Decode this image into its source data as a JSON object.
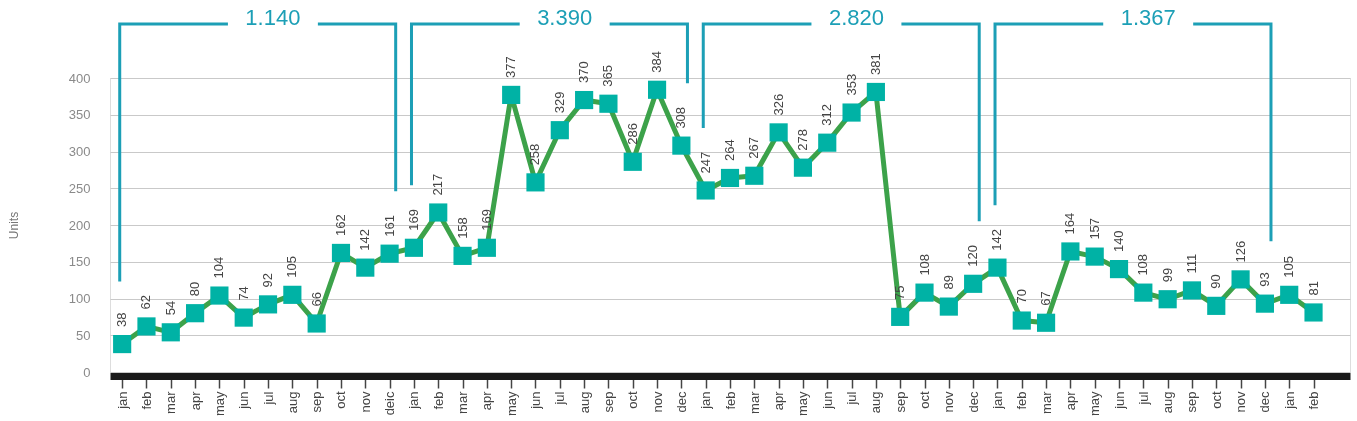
{
  "chart_data": {
    "type": "line",
    "ylabel": "Units",
    "categories": [
      "jan",
      "feb",
      "mar",
      "apr",
      "may",
      "jun",
      "jul",
      "aug",
      "sep",
      "oct",
      "nov",
      "deic",
      "jan",
      "feb",
      "mar",
      "apr",
      "may",
      "jun",
      "jul",
      "aug",
      "sep",
      "oct",
      "nov",
      "dec",
      "jan",
      "feb",
      "mar",
      "apr",
      "may",
      "jun",
      "jul",
      "aug",
      "sep",
      "oct",
      "nov",
      "dec",
      "jan",
      "feb",
      "mar",
      "apr",
      "may",
      "jun",
      "jul",
      "aug",
      "sep",
      "oct",
      "nov",
      "dec",
      "jan",
      "feb"
    ],
    "series": [
      {
        "color": "#3ca24a",
        "colors": [
          "#00b2a5",
          "#00b2a5",
          "#00b2a5",
          "#00b2a5",
          "#00b2a5",
          "#00b2a5",
          "#00b2a5",
          "#00b2a5",
          "#00b2a5",
          "#00b2a5",
          "#00b2a5",
          "#00b2a5",
          "#00b2a5",
          "#00b2a5",
          "#00b2a5",
          "#00b2a5",
          "#00b2a5",
          "#00b2a5",
          "#00b2a5",
          "#00b2a5",
          "#00b2a5",
          "#00b2a5",
          "#00b2a5",
          "#00b2a5",
          "#00b2a5",
          "#00b2a5",
          "#00b2a5",
          "#00b2a5",
          "#00b2a5",
          "#00b2a5",
          "#00b2a5",
          "#00b2a5",
          "#00b2a5",
          "#00b2a5",
          "#00b2a5",
          "#00b2a5",
          "#00b2a5",
          "#00b2a5",
          "#00b2a5",
          "#00b2a5",
          "#00b2a5",
          "#00b2a5",
          "#00b2a5",
          "#00b2a5",
          "#00b2a5",
          "#00b2a5",
          "#00b2a5",
          "#00b2a5",
          "#00b2a5",
          "#00b2a5"
        ],
        "values": [
          38,
          62,
          54,
          80,
          104,
          74,
          92,
          105,
          66,
          162,
          142,
          161,
          169,
          217,
          158,
          169,
          377,
          258,
          329,
          370,
          365,
          286,
          384,
          308,
          247,
          264,
          267,
          326,
          278,
          312,
          353,
          381,
          75,
          108,
          89,
          120,
          142,
          70,
          67,
          164,
          157,
          140,
          108,
          99,
          111,
          90,
          126,
          93,
          105,
          81
        ]
      }
    ],
    "ylim": [
      0,
      400
    ],
    "yticks": [
      0,
      50,
      100,
      150,
      200,
      250,
      300,
      350,
      400
    ],
    "grid": "y",
    "marker": "square",
    "line_style": "solid",
    "data_labels": true,
    "annotations": [
      "1.140",
      "3.390",
      "2.820",
      "1.367"
    ]
  }
}
